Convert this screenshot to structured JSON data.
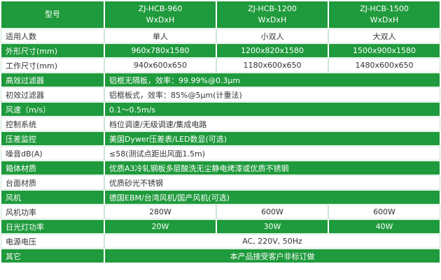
{
  "header": {
    "label": "型号",
    "models": [
      {
        "name": "ZJ-HCB-960",
        "dims": "WxDxH"
      },
      {
        "name": "ZJ-HCB-1200",
        "dims": "WxDxH"
      },
      {
        "name": "ZJ-HCB-1500",
        "dims": "WxDxH"
      }
    ]
  },
  "rows": [
    {
      "label": "适用人数",
      "values": [
        "单人",
        "小双人",
        "大双人"
      ]
    },
    {
      "label": "外形尺寸(mm)",
      "values": [
        "960x780x1580",
        "1200x820x1580",
        "1500x900x1580"
      ]
    },
    {
      "label": "工作尺寸(mm)",
      "values": [
        "940x600x650",
        "1180x600x650",
        "1480x600x650"
      ]
    },
    {
      "label": "高效过滤器",
      "values": [
        "铝框无隔板，效率：99.99%@0.3μm"
      ]
    },
    {
      "label": "初效过滤器",
      "values": [
        "铝框板式，效率：85%@5μm(计重法)"
      ]
    },
    {
      "label": "风速（m/s）",
      "values": [
        "0.1～0.5m/s"
      ]
    },
    {
      "label": "控制系统",
      "values": [
        "档位调速/无级调速/集成电路"
      ]
    },
    {
      "label": "压差监控",
      "values": [
        "美国Dywer压差表/LED数显(可选)"
      ]
    },
    {
      "label": "噪音dB(A)",
      "values": [
        "≤58(测试点距出风面1.5m)"
      ]
    },
    {
      "label": "箱体材质",
      "values": [
        "优质A3冷轧钢板多层酸洗无尘静电烤漆或优质不锈钢"
      ]
    },
    {
      "label": "台面材质",
      "values": [
        "优质砂光不锈钢"
      ]
    },
    {
      "label": "风机",
      "values": [
        "德国EBM/台湾风机/国产风机(可选)"
      ]
    },
    {
      "label": "风机功率",
      "values": [
        "280W",
        "600W",
        "600W"
      ]
    },
    {
      "label": "日光灯功率",
      "values": [
        "20W",
        "30W",
        "40W"
      ]
    },
    {
      "label": "电源电压",
      "values": [
        "AC, 220V, 50Hz"
      ],
      "align": "center"
    },
    {
      "label": "其它",
      "values": [
        "本产品接受客户非标订做"
      ],
      "align": "center"
    }
  ]
}
